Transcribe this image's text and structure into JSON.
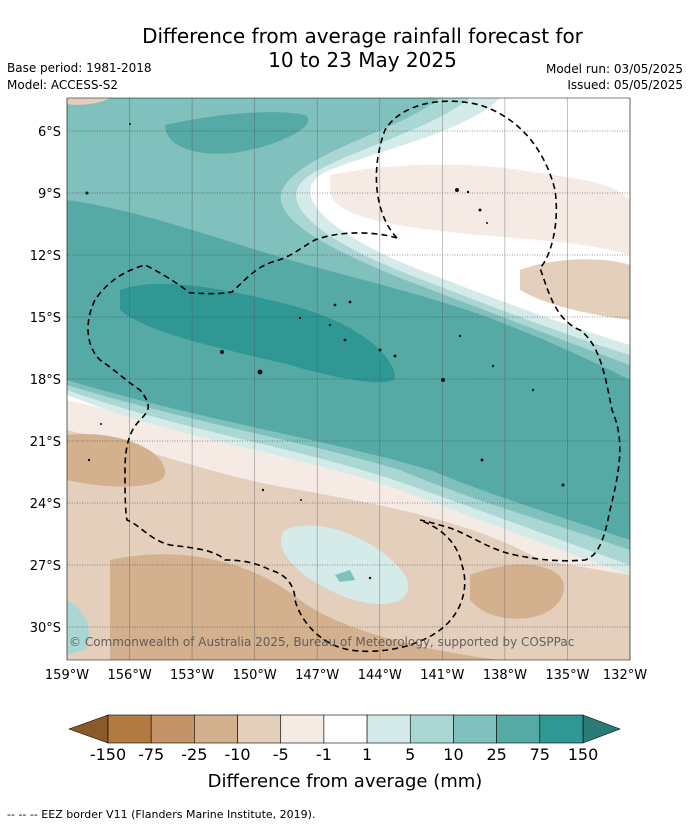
{
  "title": {
    "line1": "Difference from average rainfall forecast for",
    "line2": "10 to 23 May 2025"
  },
  "meta": {
    "base_period": "Base period: 1981-2018",
    "model": "Model: ACCESS-S2",
    "model_run": "Model run: 03/05/2025",
    "issued": "Issued: 05/05/2025"
  },
  "map": {
    "lon_range": [
      "159°W",
      "132°W"
    ],
    "lat_range": [
      "5°S",
      "32°S"
    ],
    "x_ticks": [
      "159°W",
      "156°W",
      "153°W",
      "150°W",
      "147°W",
      "144°W",
      "141°W",
      "138°W",
      "135°W",
      "132°W"
    ],
    "y_ticks": [
      "6°S",
      "9°S",
      "12°S",
      "15°S",
      "18°S",
      "21°S",
      "24°S",
      "27°S",
      "30°S"
    ],
    "copyright": "© Commonwealth of Australia 2025, Bureau of Meteorology, supported by COSPPac"
  },
  "colorbar": {
    "labels": [
      "-150",
      "-75",
      "-25",
      "-10",
      "-5",
      "-1",
      "1",
      "5",
      "10",
      "25",
      "75",
      "150"
    ],
    "colors": [
      "#b07a42",
      "#c49468",
      "#d3b08e",
      "#e4cfbc",
      "#f5ebe4",
      "#ffffff",
      "#d4ebea",
      "#aad6d4",
      "#80c0bd",
      "#56aaa6",
      "#2f9894"
    ],
    "under_color": "#8b5a2b",
    "over_color": "#2a7a76",
    "title": "Difference from average (mm)"
  },
  "footer": "--  --  -- EEZ border V11 (Flanders Marine Institute, 2019)."
}
